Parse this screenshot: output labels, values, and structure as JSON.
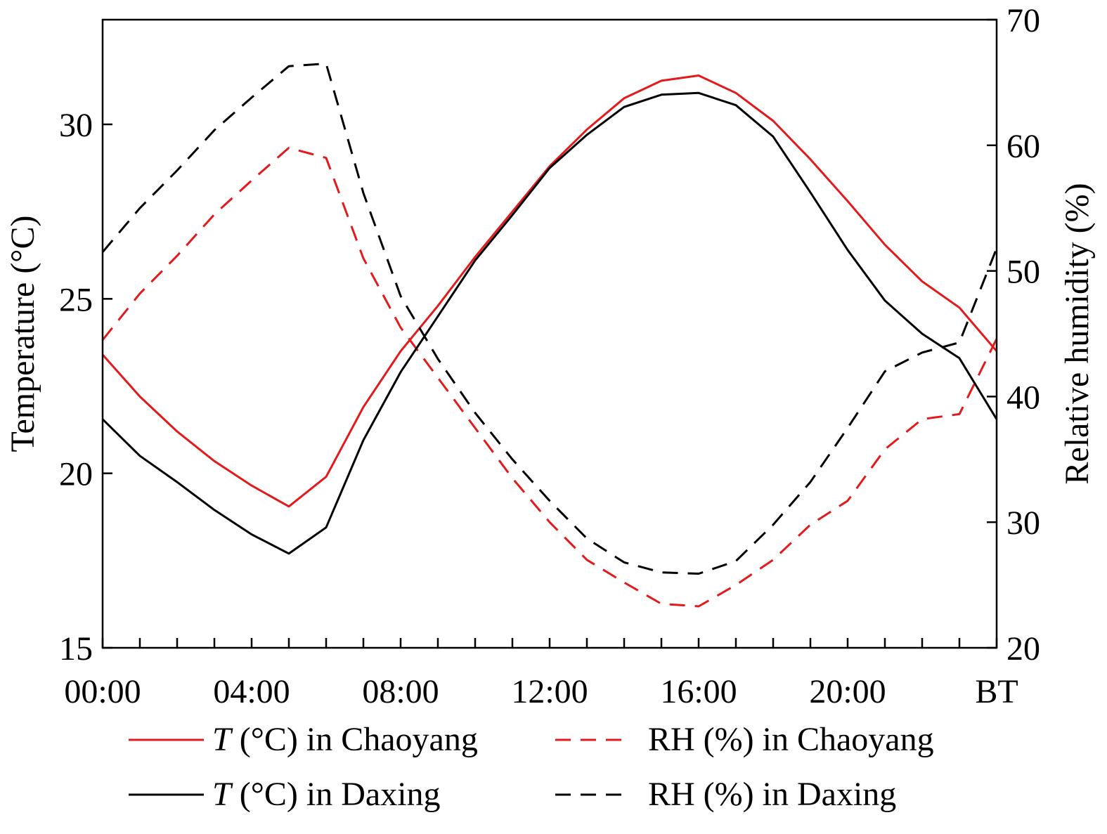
{
  "chart_data": {
    "type": "line",
    "x_labels_major": [
      "00:00",
      "04:00",
      "08:00",
      "12:00",
      "16:00",
      "20:00",
      "BT"
    ],
    "x_hours": [
      0,
      1,
      2,
      3,
      4,
      5,
      6,
      7,
      8,
      9,
      10,
      11,
      12,
      13,
      14,
      15,
      16,
      17,
      18,
      19,
      20,
      21,
      22,
      23,
      24
    ],
    "xlim": [
      0,
      24
    ],
    "left_axis": {
      "label": "Temperature (°C)",
      "ylim": [
        15,
        33
      ],
      "ticks": [
        "15",
        "20",
        "25",
        "30"
      ]
    },
    "right_axis": {
      "label": "Relative humidity (%)",
      "ylim": [
        20,
        70
      ],
      "ticks": [
        "20",
        "30",
        "40",
        "50",
        "60",
        "70"
      ]
    },
    "series": [
      {
        "name": "T (°C) in Chaoyang",
        "var": "T",
        "rest": " (°C) in Chaoyang",
        "axis": "left",
        "color": "#e31a1c",
        "dash": "solid",
        "values": [
          23.4,
          22.2,
          21.2,
          20.35,
          19.65,
          19.05,
          19.9,
          21.9,
          23.5,
          24.8,
          26.2,
          27.5,
          28.8,
          29.85,
          30.75,
          31.25,
          31.4,
          30.9,
          30.1,
          29.0,
          27.8,
          26.55,
          25.5,
          24.75,
          23.5
        ]
      },
      {
        "name": "RH (%) in Chaoyang",
        "var": "",
        "rest": "RH (%) in Chaoyang",
        "axis": "right",
        "color": "#e31a1c",
        "dash": "dashed",
        "values": [
          44.5,
          48.2,
          51.2,
          54.5,
          57.2,
          59.8,
          59.0,
          51.0,
          45.5,
          41.5,
          37.5,
          33.5,
          30.0,
          27.0,
          25.2,
          23.5,
          23.3,
          25.0,
          27.0,
          29.8,
          31.7,
          35.8,
          38.2,
          38.6,
          44.6
        ]
      },
      {
        "name": "T (°C) in Daxing",
        "var": "T",
        "rest": " (°C) in Daxing",
        "axis": "left",
        "color": "#000000",
        "dash": "solid",
        "values": [
          21.55,
          20.5,
          19.75,
          18.95,
          18.25,
          17.7,
          18.45,
          20.95,
          22.9,
          24.5,
          26.1,
          27.4,
          28.75,
          29.7,
          30.5,
          30.85,
          30.9,
          30.55,
          29.65,
          28.05,
          26.4,
          24.95,
          24.0,
          23.3,
          21.55
        ]
      },
      {
        "name": "RH (%) in Daxing",
        "var": "",
        "rest": "RH (%) in Daxing",
        "axis": "right",
        "color": "#000000",
        "dash": "dashed",
        "values": [
          51.5,
          55.0,
          58.0,
          61.2,
          63.8,
          66.3,
          66.5,
          56.2,
          48.0,
          43.0,
          38.7,
          35.0,
          31.7,
          28.7,
          26.8,
          26.0,
          25.9,
          26.9,
          29.8,
          33.2,
          37.5,
          42.0,
          43.5,
          44.3,
          51.8
        ]
      }
    ],
    "legend_position": "bottom"
  }
}
